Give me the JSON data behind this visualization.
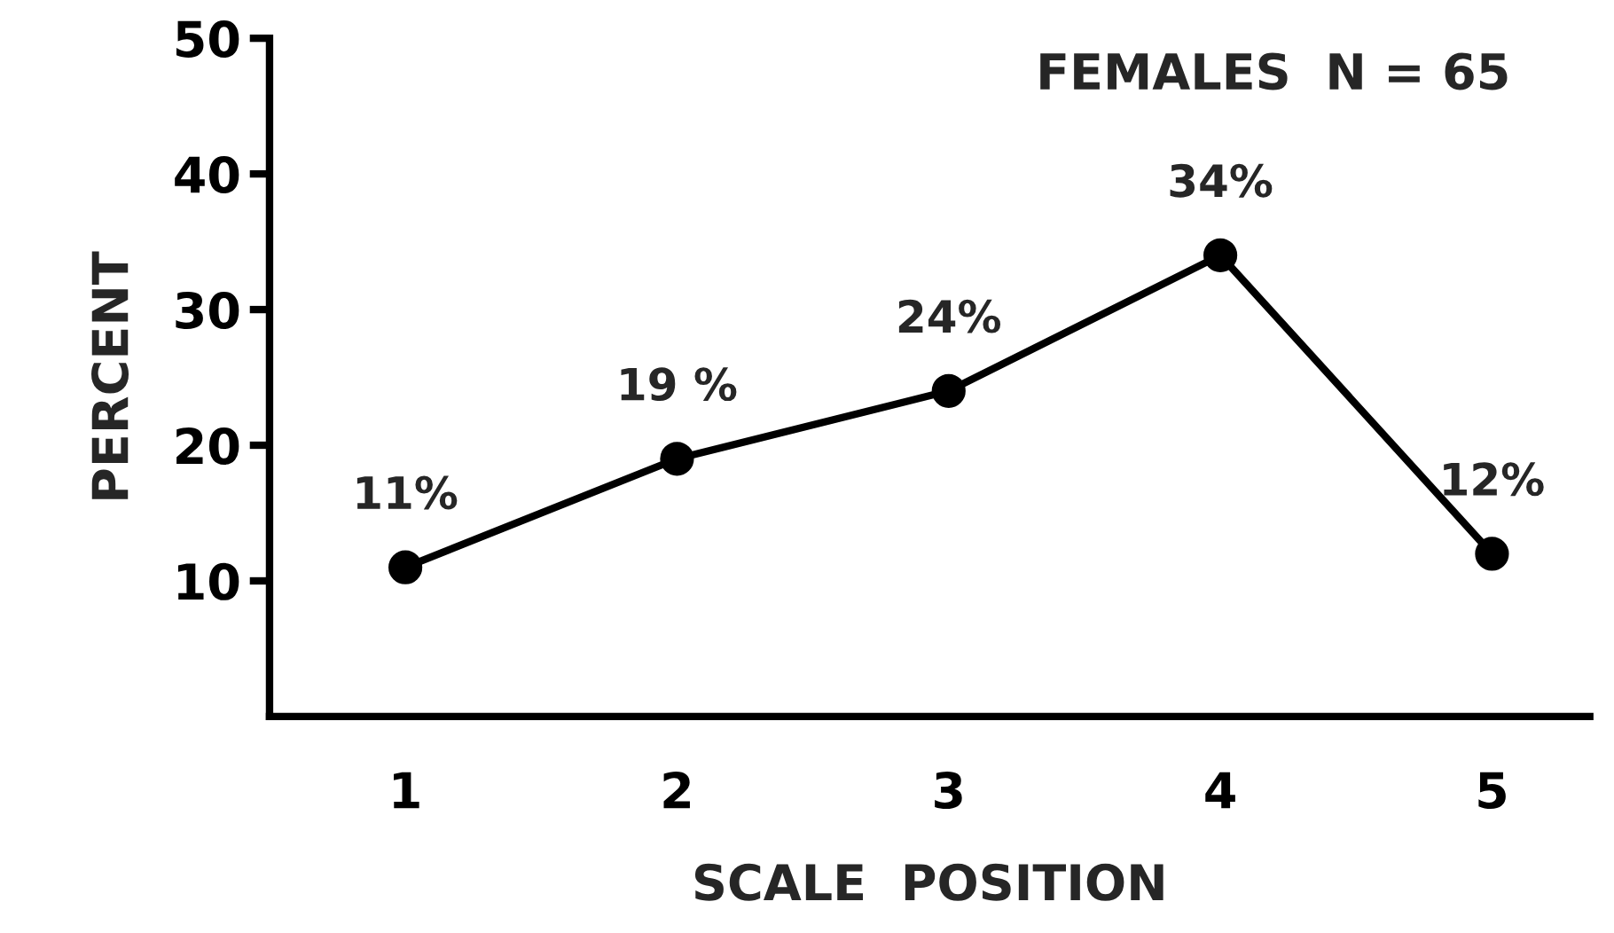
{
  "chart_data": {
    "type": "line",
    "title": "FEMALES  N = 65",
    "xlabel": "SCALE  POSITION",
    "ylabel": "PERCENT",
    "x": [
      1,
      2,
      3,
      4,
      5
    ],
    "series": [
      {
        "color": "#000000",
        "values": [
          11,
          19,
          24,
          34,
          12
        ],
        "value_labels": [
          "11%",
          "19 %",
          "24%",
          "34%",
          "12%"
        ]
      }
    ],
    "xlim": [
      0.5,
      5.36
    ],
    "xticks": [
      1,
      2,
      3,
      4,
      5
    ],
    "ylim": [
      0,
      50
    ],
    "yticks": [
      10,
      20,
      30,
      40,
      50
    ],
    "marker": "circle",
    "line_style": "solid",
    "grid": false,
    "legend": false
  }
}
